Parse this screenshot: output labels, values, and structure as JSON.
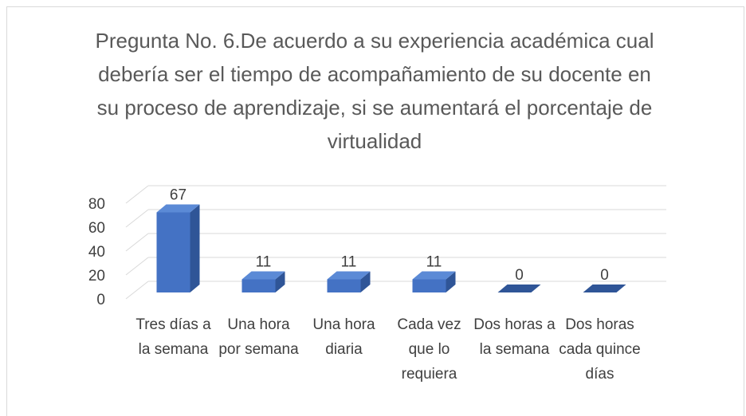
{
  "chart_data": {
    "type": "bar3d",
    "title": "Pregunta No. 6.De acuerdo a su experiencia académica cual debería ser el tiempo de acompañamiento de su docente en su proceso de aprendizaje, si se aumentará el porcentaje de virtualidad",
    "categories": [
      "Tres días a la semana",
      "Una hora por semana",
      "Una hora diaria",
      "Cada vez que lo requiera",
      "Dos horas a la semana",
      "Dos horas cada quince días"
    ],
    "values": [
      67,
      11,
      11,
      11,
      0,
      0
    ],
    "color": "#4472c4",
    "ylim": [
      0,
      80
    ],
    "yticks": [
      0,
      20,
      40,
      60,
      80
    ],
    "grid": true
  }
}
